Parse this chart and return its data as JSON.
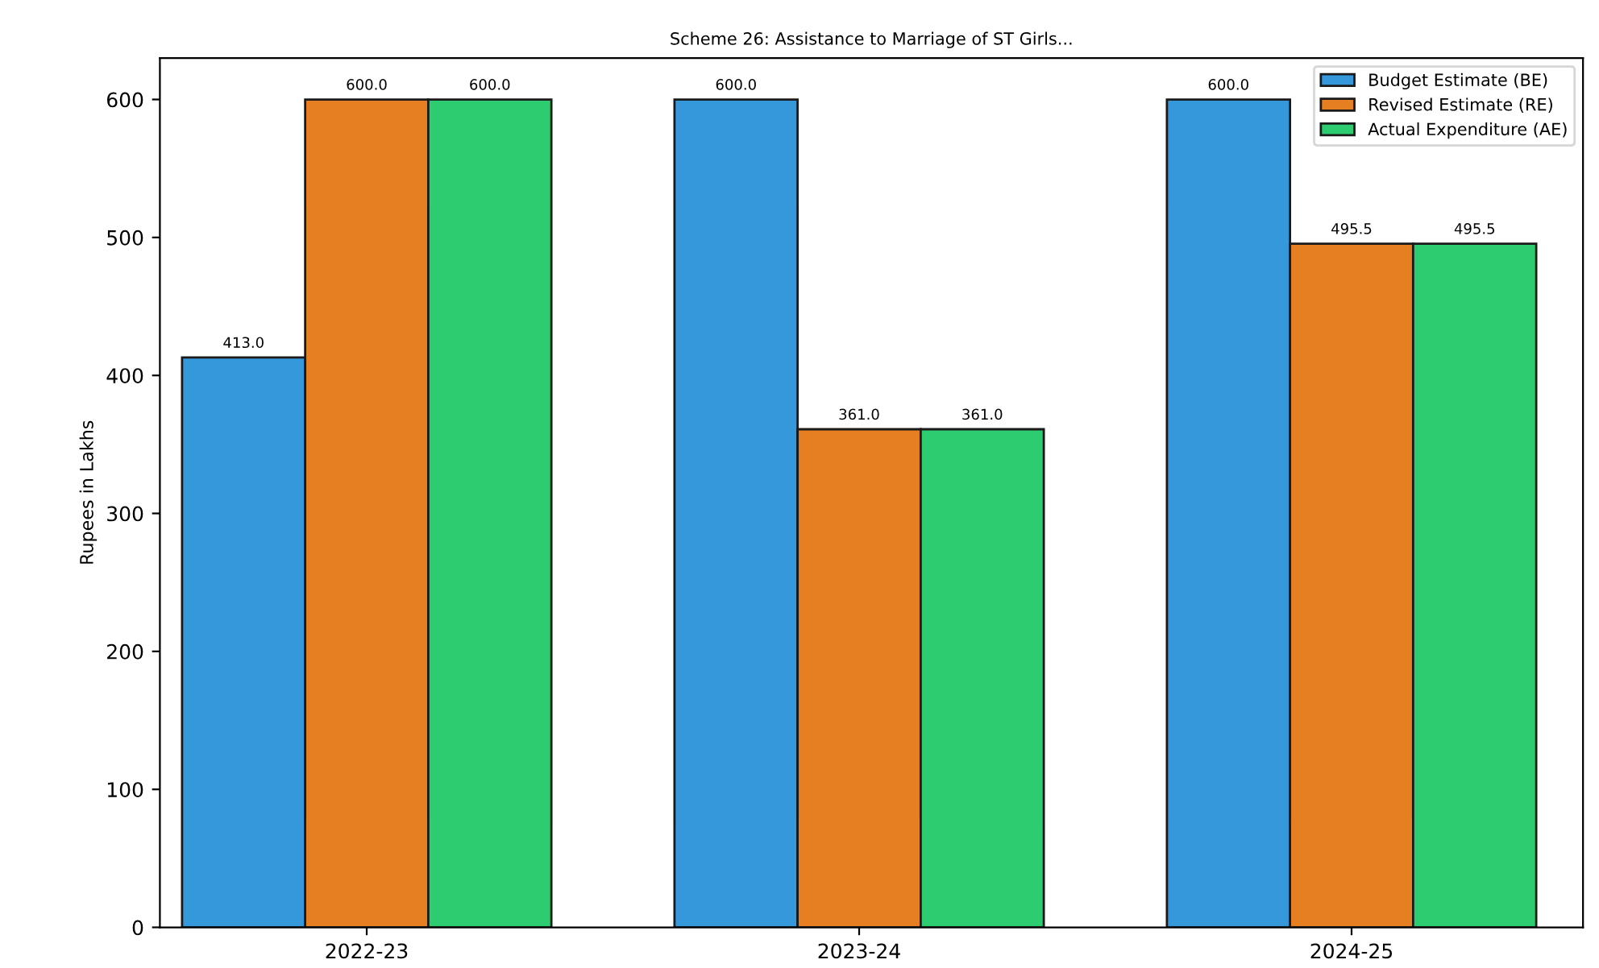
{
  "chart_data": {
    "type": "bar",
    "title": "Scheme 26: Assistance to Marriage of ST Girls...",
    "ylabel": "Rupees in Lakhs",
    "categories": [
      "2022-23",
      "2023-24",
      "2024-25"
    ],
    "series": [
      {
        "name": "Budget Estimate (BE)",
        "color": "#3498db",
        "values": [
          413.0,
          600.0,
          600.0
        ],
        "value_labels": [
          "413.0",
          "600.0",
          "600.0"
        ]
      },
      {
        "name": "Revised Estimate (RE)",
        "color": "#e67e22",
        "values": [
          600.0,
          361.0,
          495.5
        ],
        "value_labels": [
          "600.0",
          "361.0",
          "495.5"
        ]
      },
      {
        "name": "Actual Expenditure (AE)",
        "color": "#2ecc71",
        "values": [
          600.0,
          361.0,
          495.5
        ],
        "value_labels": [
          "600.0",
          "361.0",
          "495.5"
        ]
      }
    ],
    "ylim": [
      0,
      630
    ],
    "yticks": [
      0,
      100,
      200,
      300,
      400,
      500,
      600
    ],
    "legend": "top right",
    "grid": false
  }
}
